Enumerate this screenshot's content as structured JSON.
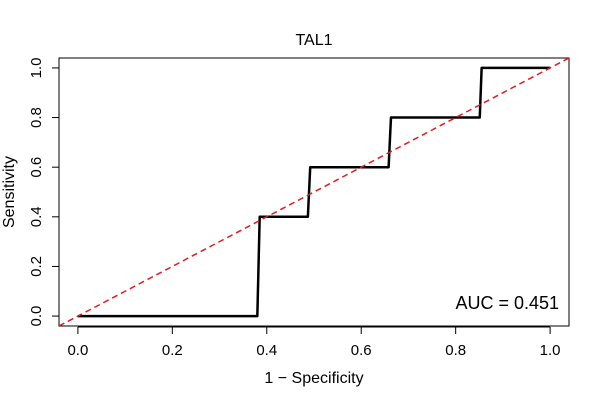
{
  "chart_data": {
    "type": "line",
    "title": "TAL1",
    "xlabel": "1 − Specificity",
    "ylabel": "Sensitivity",
    "xlim": [
      -0.04,
      1.04
    ],
    "ylim": [
      -0.04,
      1.04
    ],
    "x_ticks": [
      0.0,
      0.2,
      0.4,
      0.6,
      0.8,
      1.0
    ],
    "y_ticks": [
      0.0,
      0.2,
      0.4,
      0.6,
      0.8,
      1.0
    ],
    "x_tick_labels": [
      "0.0",
      "0.2",
      "0.4",
      "0.6",
      "0.8",
      "1.0"
    ],
    "y_tick_labels": [
      "0.0",
      "0.2",
      "0.4",
      "0.6",
      "0.8",
      "1.0"
    ],
    "grid": false,
    "series": [
      {
        "x": [
          0.0,
          0.38,
          0.38,
          0.385,
          0.487,
          0.487,
          0.492,
          0.658,
          0.658,
          0.663,
          0.851,
          0.851,
          0.855,
          1.0
        ],
        "y": [
          0.0,
          0.0,
          0.0,
          0.4,
          0.4,
          0.4,
          0.6,
          0.6,
          0.6,
          0.8,
          0.8,
          0.8,
          1.0,
          1.0
        ],
        "color": "#000000",
        "style": "solid"
      },
      {
        "x": [
          -0.04,
          1.04
        ],
        "y": [
          -0.04,
          1.04
        ],
        "color": "#e41a1c",
        "style": "dashed"
      }
    ],
    "annotation": "AUC = 0.451"
  }
}
